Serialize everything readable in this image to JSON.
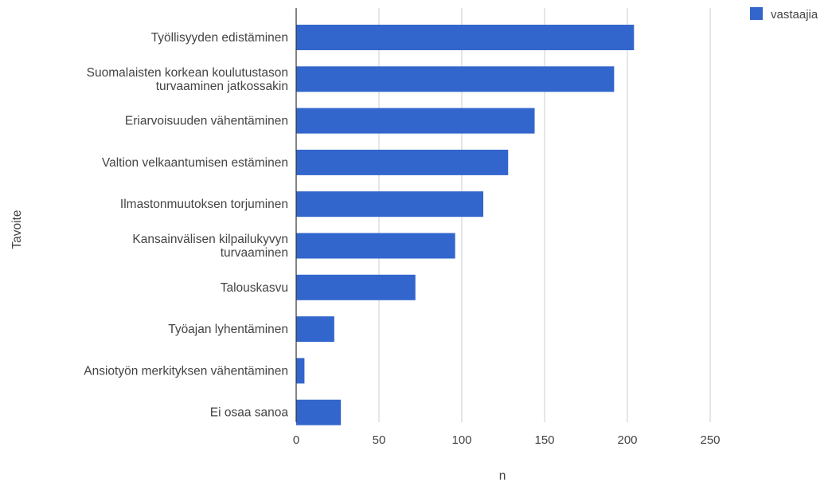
{
  "chart_data": {
    "type": "bar",
    "orientation": "horizontal",
    "categories": [
      [
        "Työllisyyden edistäminen"
      ],
      [
        "Suomalaisten korkean koulutustason",
        "turvaaminen jatkossakin"
      ],
      [
        "Eriarvoisuuden vähentäminen"
      ],
      [
        "Valtion velkaantumisen estäminen"
      ],
      [
        "Ilmastonmuutoksen torjuminen"
      ],
      [
        "Kansainvälisen kilpailukyvyn",
        "turvaaminen"
      ],
      [
        "Talouskasvu"
      ],
      [
        "Työajan lyhentäminen"
      ],
      [
        "Ansiotyön merkityksen vähentäminen"
      ],
      [
        "Ei osaa sanoa"
      ]
    ],
    "series": [
      {
        "name": "vastaajia",
        "color": "#3366cc",
        "values": [
          204,
          192,
          144,
          128,
          113,
          96,
          72,
          23,
          5,
          27
        ]
      }
    ],
    "xlabel": "n",
    "ylabel": "Tavoite",
    "xlim": [
      0,
      250
    ],
    "xticks": [
      0,
      50,
      100,
      150,
      200,
      250
    ],
    "grid": true,
    "legend_position": "top-right"
  }
}
